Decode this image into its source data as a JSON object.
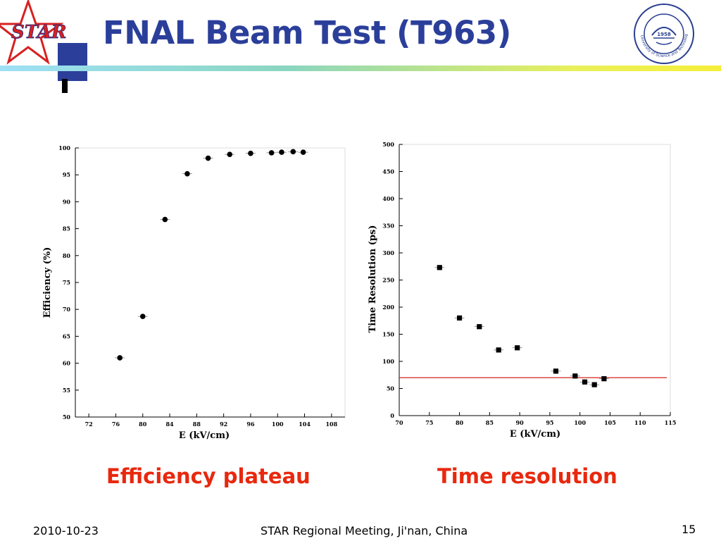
{
  "slide": {
    "title": "FNAL Beam Test (T963)",
    "logo_text": "STAR",
    "seal_year": "1958",
    "seal_text": "University of Science and Technology of China",
    "captions": [
      "Efficiency plateau",
      "Time resolution"
    ],
    "footer": {
      "date": "2010-10-23",
      "center": "STAR Regional Meeting, Ji'nan, China",
      "page": "15"
    },
    "colors": {
      "title": "#2b3f9a",
      "caption": "#e8280e",
      "reference_line": "#d42020"
    },
    "icons": [
      "star-logo-icon",
      "university-seal-icon"
    ]
  },
  "chart_data": [
    {
      "type": "scatter",
      "marker": "circle",
      "title": "",
      "xlabel": "E (kV/cm)",
      "ylabel": "Efficiency (%)",
      "xlim": [
        70,
        110
      ],
      "ylim": [
        50,
        100
      ],
      "xticks": [
        "72",
        "76",
        "80",
        "84",
        "88",
        "92",
        "96",
        "100",
        "104",
        "108"
      ],
      "yticks": [
        "50",
        "55",
        "60",
        "65",
        "70",
        "75",
        "80",
        "85",
        "90",
        "95",
        "100"
      ],
      "grid": false,
      "x": [
        76.6,
        80,
        83.3,
        86.6,
        89.7,
        92.9,
        96,
        99.1,
        100.6,
        102.3,
        103.8
      ],
      "y": [
        61,
        68.7,
        86.7,
        95.2,
        98.1,
        98.8,
        99,
        99.1,
        99.2,
        99.3,
        99.2
      ]
    },
    {
      "type": "scatter",
      "marker": "square",
      "title": "",
      "xlabel": "E (kV/cm)",
      "ylabel": "Time Resolution (ps)",
      "xlim": [
        70,
        115
      ],
      "ylim": [
        0,
        500
      ],
      "xticks": [
        "70",
        "75",
        "80",
        "85",
        "90",
        "95",
        "100",
        "105",
        "110",
        "115"
      ],
      "yticks": [
        "0",
        "50",
        "100",
        "150",
        "200",
        "250",
        "300",
        "350",
        "400",
        "450",
        "500"
      ],
      "grid": false,
      "x": [
        76.7,
        80,
        83.3,
        86.5,
        89.6,
        96,
        99.2,
        100.8,
        102.4,
        104
      ],
      "y": [
        273,
        180,
        164,
        121,
        125,
        82,
        73,
        62,
        57,
        68
      ],
      "reference_line": {
        "y": 70
      }
    }
  ]
}
